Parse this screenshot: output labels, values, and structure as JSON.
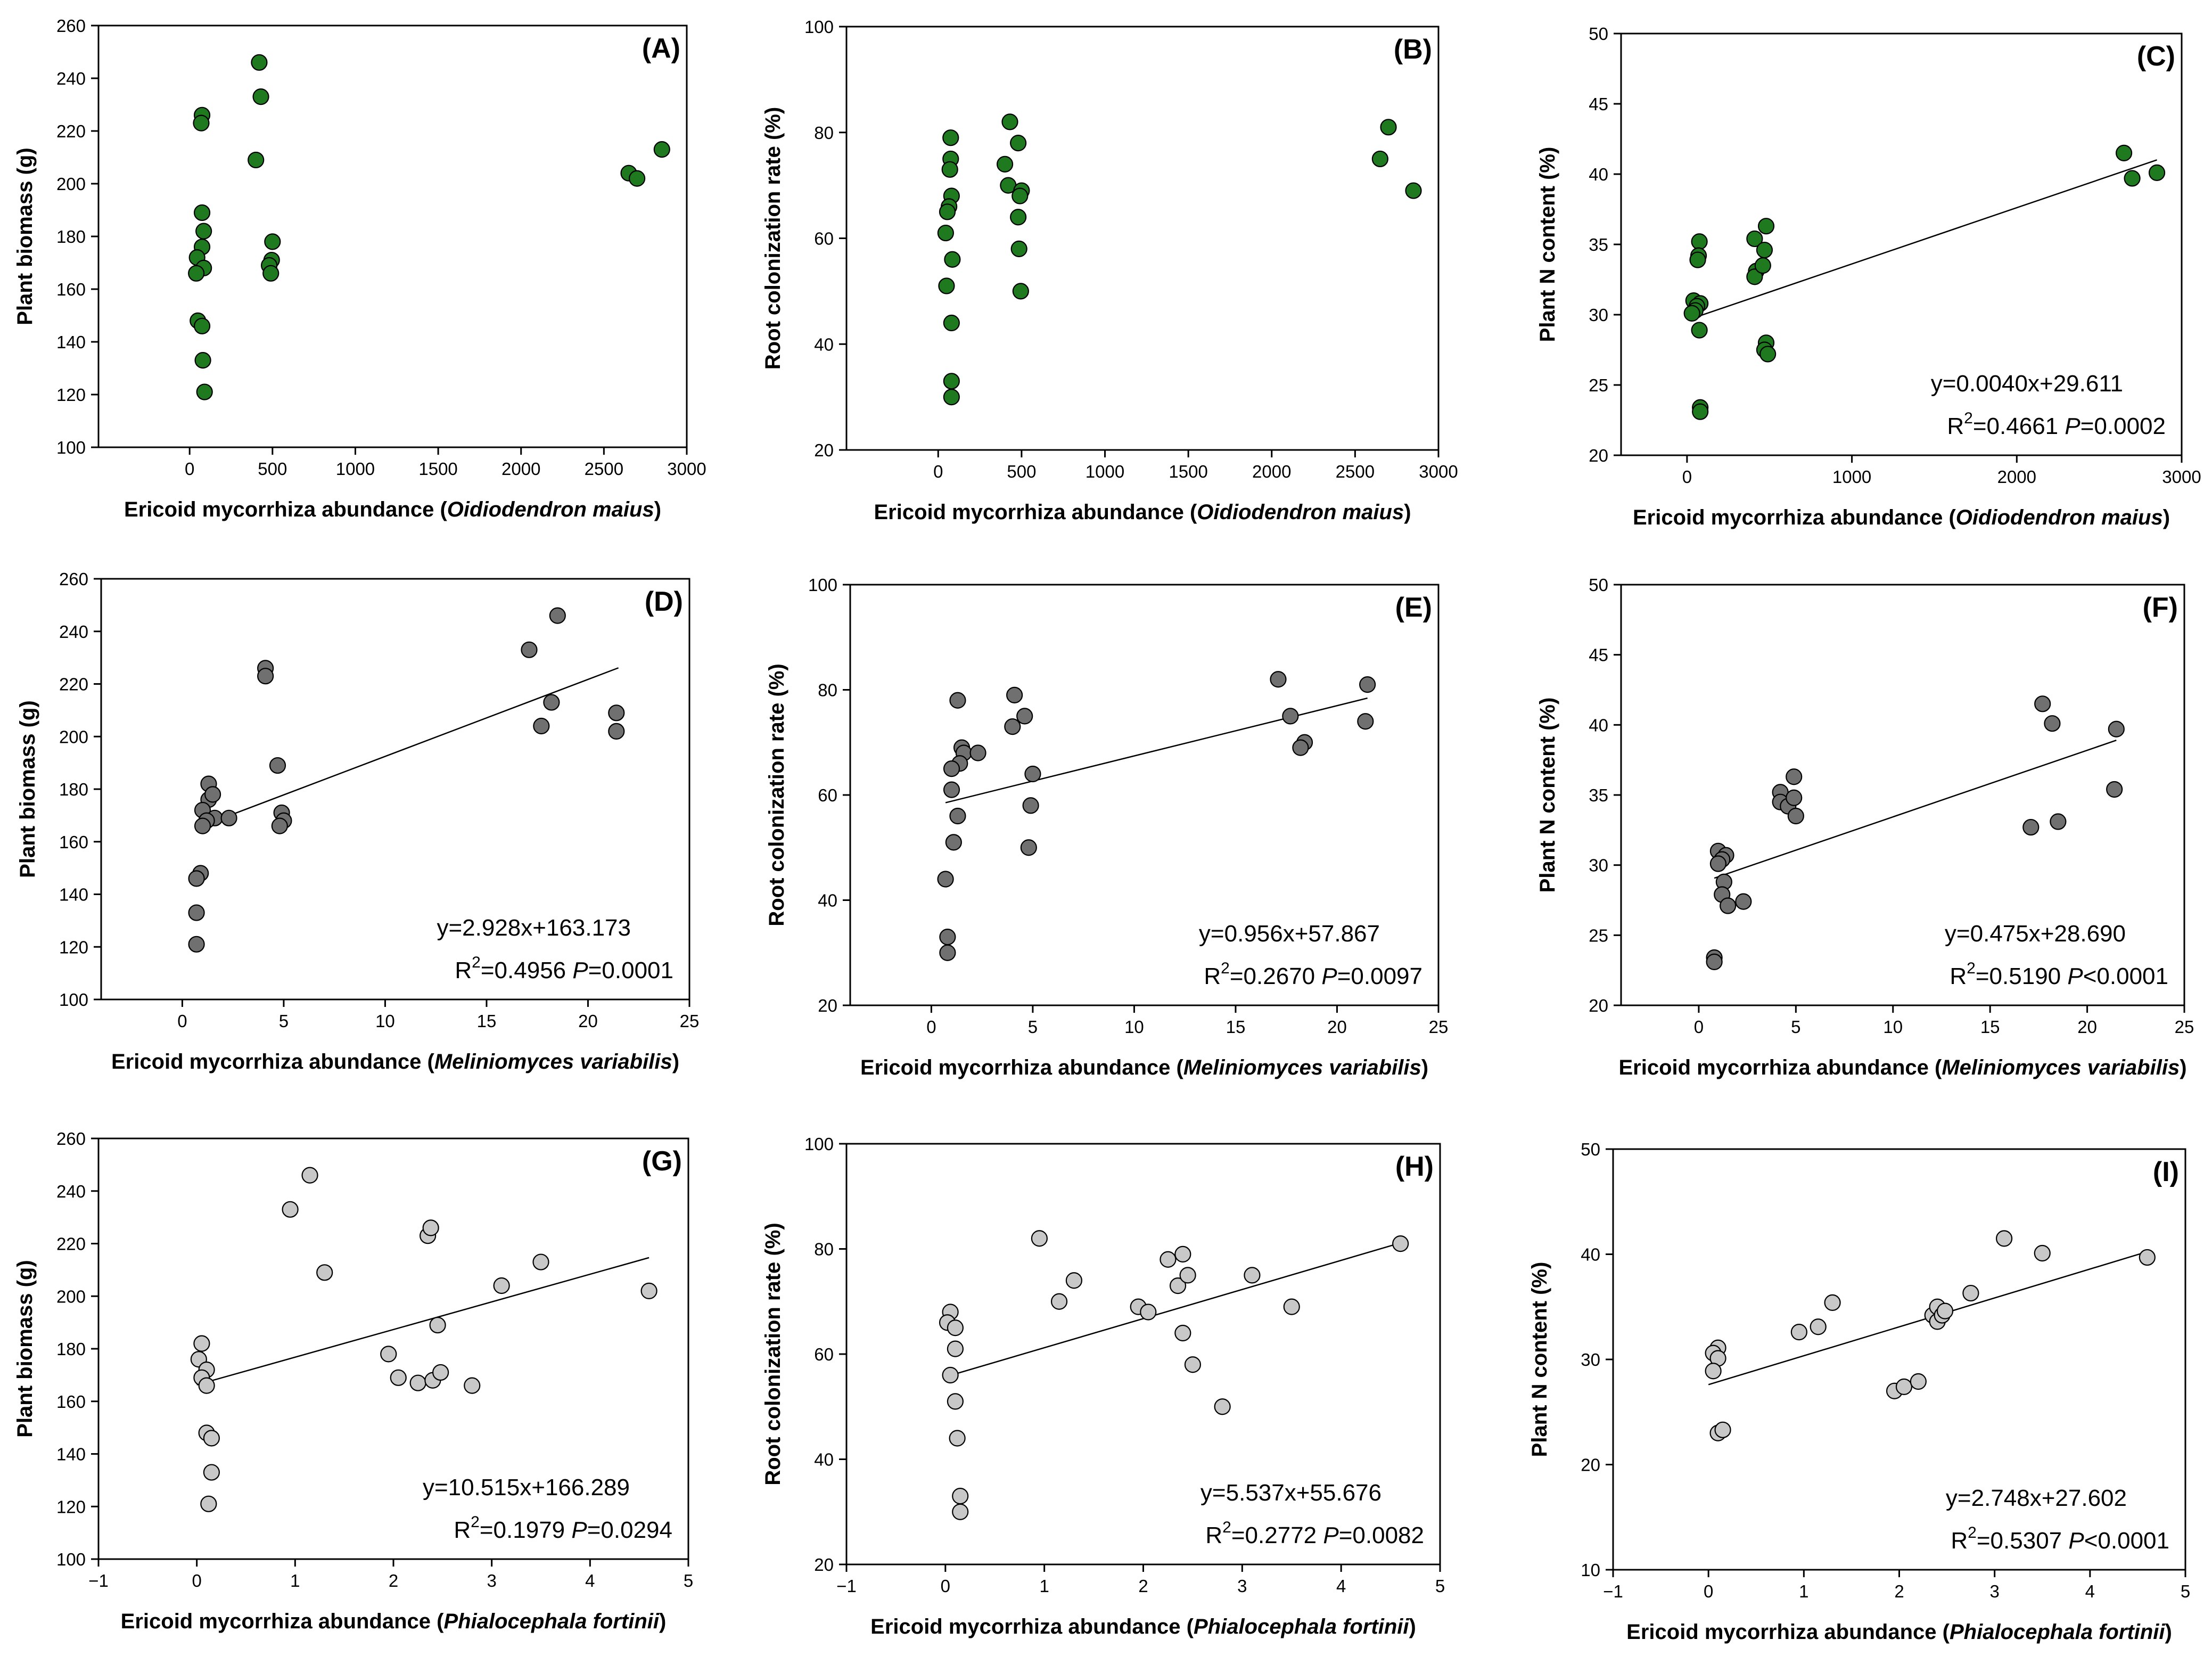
{
  "chart_data": [
    {
      "id": "A",
      "type": "scatter",
      "panel_label": "(A)",
      "ylabel": "Plant biomass (g)",
      "xlabel_prefix": "Ericoid mycorrhiza abundance (",
      "xlabel_species": "Oidiodendron maius",
      "xlabel_suffix": ")",
      "xlim": [
        -550,
        3000
      ],
      "ylim": [
        100,
        260
      ],
      "xticks": [
        0,
        500,
        1000,
        1500,
        2000,
        2500,
        3000
      ],
      "yticks": [
        100,
        120,
        140,
        160,
        180,
        200,
        220,
        240,
        260
      ],
      "marker_color": "#1f7a1f",
      "grid": false,
      "points": [
        [
          75,
          226
        ],
        [
          70,
          223
        ],
        [
          75,
          189
        ],
        [
          85,
          182
        ],
        [
          75,
          176
        ],
        [
          45,
          172
        ],
        [
          85,
          168
        ],
        [
          40,
          166
        ],
        [
          50,
          148
        ],
        [
          75,
          146
        ],
        [
          80,
          133
        ],
        [
          90,
          121
        ],
        [
          420,
          246
        ],
        [
          430,
          233
        ],
        [
          400,
          209
        ],
        [
          500,
          178
        ],
        [
          495,
          171
        ],
        [
          480,
          169
        ],
        [
          490,
          166
        ],
        [
          2650,
          204
        ],
        [
          2700,
          202
        ],
        [
          2850,
          213
        ]
      ],
      "fit": null,
      "equation": "",
      "r2": "",
      "p_label": "",
      "p_value": ""
    },
    {
      "id": "B",
      "type": "scatter",
      "panel_label": "(B)",
      "ylabel": "Root colonization rate (%)",
      "xlabel_prefix": "Ericoid mycorrhiza abundance (",
      "xlabel_species": "Oidiodendron maius",
      "xlabel_suffix": ")",
      "xlim": [
        -550,
        3000
      ],
      "ylim": [
        20,
        100
      ],
      "xticks": [
        0,
        500,
        1000,
        1500,
        2000,
        2500,
        3000
      ],
      "yticks": [
        20,
        40,
        60,
        80,
        100
      ],
      "marker_color": "#1f7a1f",
      "grid": false,
      "points": [
        [
          75,
          79
        ],
        [
          75,
          75
        ],
        [
          70,
          73
        ],
        [
          80,
          68
        ],
        [
          65,
          66
        ],
        [
          55,
          65
        ],
        [
          45,
          61
        ],
        [
          85,
          56
        ],
        [
          50,
          51
        ],
        [
          80,
          44
        ],
        [
          80,
          33
        ],
        [
          80,
          30
        ],
        [
          430,
          82
        ],
        [
          400,
          74
        ],
        [
          420,
          70
        ],
        [
          480,
          78
        ],
        [
          500,
          69
        ],
        [
          490,
          68
        ],
        [
          480,
          64
        ],
        [
          485,
          58
        ],
        [
          495,
          50
        ],
        [
          2650,
          75
        ],
        [
          2700,
          81
        ],
        [
          2850,
          69
        ]
      ],
      "fit": null,
      "equation": "",
      "r2": "",
      "p_label": "",
      "p_value": ""
    },
    {
      "id": "C",
      "type": "scatter",
      "panel_label": "(C)",
      "ylabel": "Plant N content (%)",
      "xlabel_prefix": "Ericoid mycorrhiza abundance (",
      "xlabel_species": "Oidiodendron maius",
      "xlabel_suffix": ")",
      "xlim": [
        -400,
        3000
      ],
      "ylim": [
        20,
        50
      ],
      "xticks": [
        0,
        1000,
        2000,
        3000
      ],
      "yticks": [
        20,
        25,
        30,
        35,
        40,
        45,
        50
      ],
      "marker_color": "#1f7a1f",
      "grid": false,
      "points": [
        [
          75,
          35.2
        ],
        [
          70,
          34.2
        ],
        [
          65,
          33.9
        ],
        [
          40,
          31.0
        ],
        [
          80,
          30.8
        ],
        [
          60,
          30.6
        ],
        [
          50,
          30.3
        ],
        [
          30,
          30.1
        ],
        [
          75,
          28.9
        ],
        [
          80,
          23.4
        ],
        [
          80,
          23.1
        ],
        [
          410,
          35.4
        ],
        [
          420,
          33.1
        ],
        [
          410,
          32.7
        ],
        [
          480,
          36.3
        ],
        [
          470,
          34.6
        ],
        [
          460,
          33.5
        ],
        [
          480,
          28.0
        ],
        [
          470,
          27.5
        ],
        [
          490,
          27.2
        ],
        [
          2650,
          41.5
        ],
        [
          2700,
          39.7
        ],
        [
          2850,
          40.1
        ]
      ],
      "fit": {
        "slope": 0.004,
        "intercept": 29.611,
        "x0": 30,
        "x1": 2850
      },
      "equation": "y=0.0040x+29.611",
      "r2": "=0.4661",
      "p_label": "P",
      "p_value": "=0.0002"
    },
    {
      "id": "D",
      "type": "scatter",
      "panel_label": "(D)",
      "ylabel": "Plant biomass (g)",
      "xlabel_prefix": "Ericoid mycorrhiza abundance (",
      "xlabel_species": "Meliniomyces variabilis",
      "xlabel_suffix": ")",
      "xlim": [
        -4,
        25
      ],
      "ylim": [
        100,
        260
      ],
      "xticks": [
        0,
        5,
        10,
        15,
        20,
        25
      ],
      "yticks": [
        100,
        120,
        140,
        160,
        180,
        200,
        220,
        240,
        260
      ],
      "marker_color": "#707070",
      "grid": false,
      "points": [
        [
          4.1,
          226
        ],
        [
          4.1,
          223
        ],
        [
          4.7,
          189
        ],
        [
          1.3,
          182
        ],
        [
          1.3,
          176
        ],
        [
          1.5,
          178
        ],
        [
          1.0,
          172
        ],
        [
          1.6,
          169
        ],
        [
          1.2,
          168
        ],
        [
          1.0,
          166
        ],
        [
          2.3,
          169
        ],
        [
          4.9,
          171
        ],
        [
          5.0,
          168
        ],
        [
          4.8,
          166
        ],
        [
          0.9,
          148
        ],
        [
          0.7,
          146
        ],
        [
          0.7,
          133
        ],
        [
          0.7,
          121
        ],
        [
          18.5,
          246
        ],
        [
          17.1,
          233
        ],
        [
          18.2,
          213
        ],
        [
          17.7,
          204
        ],
        [
          21.4,
          209
        ],
        [
          21.4,
          202
        ]
      ],
      "fit": {
        "slope": 2.928,
        "intercept": 163.173,
        "x0": 0.7,
        "x1": 21.5
      },
      "equation": "y=2.928x+163.173",
      "r2": "=0.4956",
      "p_label": "P",
      "p_value": "=0.0001"
    },
    {
      "id": "E",
      "type": "scatter",
      "panel_label": "(E)",
      "ylabel": "Root colonization rate (%)",
      "xlabel_prefix": "Ericoid mycorrhiza abundance (",
      "xlabel_species": "Meliniomyces variabilis",
      "xlabel_suffix": ")",
      "xlim": [
        -4,
        25
      ],
      "ylim": [
        20,
        100
      ],
      "xticks": [
        0,
        5,
        10,
        15,
        20,
        25
      ],
      "yticks": [
        20,
        40,
        60,
        80,
        100
      ],
      "marker_color": "#707070",
      "grid": false,
      "points": [
        [
          1.3,
          78
        ],
        [
          1.5,
          69
        ],
        [
          1.6,
          68
        ],
        [
          1.4,
          66
        ],
        [
          1.0,
          65
        ],
        [
          1.0,
          61
        ],
        [
          2.3,
          68
        ],
        [
          1.3,
          56
        ],
        [
          1.1,
          51
        ],
        [
          0.7,
          44
        ],
        [
          0.8,
          33
        ],
        [
          0.8,
          30
        ],
        [
          4.1,
          79
        ],
        [
          4.0,
          73
        ],
        [
          4.6,
          75
        ],
        [
          5.0,
          64
        ],
        [
          4.9,
          58
        ],
        [
          4.8,
          50
        ],
        [
          17.1,
          82
        ],
        [
          17.7,
          75
        ],
        [
          18.4,
          70
        ],
        [
          18.2,
          69
        ],
        [
          21.5,
          81
        ],
        [
          21.4,
          74
        ]
      ],
      "fit": {
        "slope": 0.956,
        "intercept": 57.867,
        "x0": 0.7,
        "x1": 21.5
      },
      "equation": "y=0.956x+57.867",
      "r2": "=0.2670",
      "p_label": "P",
      "p_value": "=0.0097"
    },
    {
      "id": "F",
      "type": "scatter",
      "panel_label": "(F)",
      "ylabel": "Plant N content (%)",
      "xlabel_prefix": "Ericoid mycorrhiza abundance (",
      "xlabel_species": "Meliniomyces variabilis",
      "xlabel_suffix": ")",
      "xlim": [
        -4,
        25
      ],
      "ylim": [
        20,
        50
      ],
      "xticks": [
        0,
        5,
        10,
        15,
        20,
        25
      ],
      "yticks": [
        20,
        25,
        30,
        35,
        40,
        45,
        50
      ],
      "marker_color": "#707070",
      "grid": false,
      "points": [
        [
          1.0,
          31.0
        ],
        [
          1.4,
          30.7
        ],
        [
          1.2,
          30.4
        ],
        [
          1.0,
          30.1
        ],
        [
          1.3,
          28.8
        ],
        [
          1.2,
          27.9
        ],
        [
          1.5,
          27.1
        ],
        [
          2.3,
          27.4
        ],
        [
          0.8,
          23.4
        ],
        [
          0.8,
          23.1
        ],
        [
          4.2,
          35.2
        ],
        [
          4.2,
          34.5
        ],
        [
          4.6,
          34.2
        ],
        [
          4.9,
          36.3
        ],
        [
          4.9,
          34.8
        ],
        [
          5.0,
          33.5
        ],
        [
          17.7,
          41.5
        ],
        [
          18.2,
          40.1
        ],
        [
          17.1,
          32.7
        ],
        [
          18.5,
          33.1
        ],
        [
          21.5,
          39.7
        ],
        [
          21.4,
          35.4
        ]
      ],
      "fit": {
        "slope": 0.475,
        "intercept": 28.69,
        "x0": 0.8,
        "x1": 21.5
      },
      "equation": "y=0.475x+28.690",
      "r2": "=0.5190",
      "p_label": "P",
      "p_value": "<0.0001"
    },
    {
      "id": "G",
      "type": "scatter",
      "panel_label": "(G)",
      "ylabel": "Plant biomass (g)",
      "xlabel_prefix": "Ericoid mycorrhiza abundance (",
      "xlabel_species": "Phialocephala fortinii",
      "xlabel_suffix": ")",
      "xlim": [
        -1,
        5
      ],
      "ylim": [
        100,
        260
      ],
      "xticks": [
        -1,
        0,
        1,
        2,
        3,
        4,
        5
      ],
      "yticks": [
        100,
        120,
        140,
        160,
        180,
        200,
        220,
        240,
        260
      ],
      "marker_color": "#c8c8c8",
      "grid": false,
      "points": [
        [
          0.05,
          182
        ],
        [
          0.02,
          176
        ],
        [
          0.1,
          172
        ],
        [
          0.05,
          169
        ],
        [
          0.1,
          166
        ],
        [
          0.1,
          148
        ],
        [
          0.15,
          146
        ],
        [
          0.15,
          133
        ],
        [
          0.12,
          121
        ],
        [
          0.95,
          233
        ],
        [
          1.15,
          246
        ],
        [
          1.3,
          209
        ],
        [
          1.95,
          178
        ],
        [
          2.05,
          169
        ],
        [
          2.25,
          167
        ],
        [
          2.35,
          223
        ],
        [
          2.38,
          226
        ],
        [
          2.45,
          189
        ],
        [
          2.4,
          168
        ],
        [
          2.48,
          171
        ],
        [
          2.8,
          166
        ],
        [
          3.1,
          204
        ],
        [
          3.5,
          213
        ],
        [
          4.6,
          202
        ]
      ],
      "fit": {
        "slope": 10.515,
        "intercept": 166.289,
        "x0": 0.0,
        "x1": 4.6
      },
      "equation": "y=10.515x+166.289",
      "r2": "=0.1979",
      "p_label": "P",
      "p_value": "=0.0294"
    },
    {
      "id": "H",
      "type": "scatter",
      "panel_label": "(H)",
      "ylabel": "Root colonization rate (%)",
      "xlabel_prefix": "Ericoid mycorrhiza abundance (",
      "xlabel_species": "Phialocephala fortinii",
      "xlabel_suffix": ")",
      "xlim": [
        -1,
        5
      ],
      "ylim": [
        20,
        100
      ],
      "xticks": [
        -1,
        0,
        1,
        2,
        3,
        4,
        5
      ],
      "yticks": [
        20,
        40,
        60,
        80,
        100
      ],
      "marker_color": "#c8c8c8",
      "grid": false,
      "points": [
        [
          0.05,
          68
        ],
        [
          0.02,
          66
        ],
        [
          0.1,
          65
        ],
        [
          0.1,
          61
        ],
        [
          0.05,
          56
        ],
        [
          0.1,
          51
        ],
        [
          0.12,
          44
        ],
        [
          0.15,
          33
        ],
        [
          0.15,
          30
        ],
        [
          0.95,
          82
        ],
        [
          1.15,
          70
        ],
        [
          1.3,
          74
        ],
        [
          1.95,
          69
        ],
        [
          2.05,
          68
        ],
        [
          2.25,
          78
        ],
        [
          2.4,
          79
        ],
        [
          2.35,
          73
        ],
        [
          2.45,
          75
        ],
        [
          2.4,
          64
        ],
        [
          2.5,
          58
        ],
        [
          2.8,
          50
        ],
        [
          3.1,
          75
        ],
        [
          3.5,
          69
        ],
        [
          4.6,
          81
        ]
      ],
      "fit": {
        "slope": 5.537,
        "intercept": 55.676,
        "x0": 0.0,
        "x1": 4.6
      },
      "equation": "y=5.537x+55.676",
      "r2": "=0.2772",
      "p_label": "P",
      "p_value": "=0.0082"
    },
    {
      "id": "I",
      "type": "scatter",
      "panel_label": "(I)",
      "ylabel": "Plant N content (%)",
      "xlabel_prefix": "Ericoid mycorrhiza abundance (",
      "xlabel_species": "Phialocephala fortinii",
      "xlabel_suffix": ")",
      "xlim": [
        -1,
        5
      ],
      "ylim": [
        10,
        50
      ],
      "xticks": [
        -1,
        0,
        1,
        2,
        3,
        4,
        5
      ],
      "yticks": [
        10,
        20,
        30,
        40,
        50
      ],
      "marker_color": "#c8c8c8",
      "grid": false,
      "points": [
        [
          0.1,
          31.1
        ],
        [
          0.05,
          30.6
        ],
        [
          0.1,
          30.1
        ],
        [
          0.05,
          28.9
        ],
        [
          0.1,
          23.0
        ],
        [
          0.15,
          23.3
        ],
        [
          0.95,
          32.6
        ],
        [
          1.15,
          33.1
        ],
        [
          1.3,
          35.4
        ],
        [
          1.95,
          27.0
        ],
        [
          2.05,
          27.4
        ],
        [
          2.2,
          27.9
        ],
        [
          2.35,
          34.2
        ],
        [
          2.4,
          35.0
        ],
        [
          2.4,
          33.6
        ],
        [
          2.45,
          34.2
        ],
        [
          2.48,
          34.6
        ],
        [
          2.75,
          36.3
        ],
        [
          3.1,
          41.5
        ],
        [
          3.5,
          40.1
        ],
        [
          4.6,
          39.7
        ]
      ],
      "fit": {
        "slope": 2.748,
        "intercept": 27.602,
        "x0": 0.0,
        "x1": 4.6
      },
      "equation": "y=2.748x+27.602",
      "r2": "=0.5307",
      "p_label": "P",
      "p_value": "<0.0001"
    }
  ]
}
